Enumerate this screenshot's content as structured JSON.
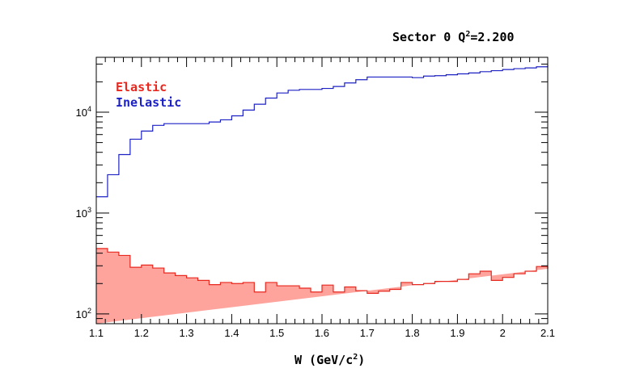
{
  "chart_data": {
    "type": "step",
    "title": {
      "prefix": "Sector 0 Q",
      "sup": "2",
      "suffix": "=2.200"
    },
    "xlabel": {
      "prefix": "W  (GeV/c",
      "sup": "2",
      "suffix": ")"
    },
    "ylabel": "",
    "xlim": [
      1.1,
      2.1
    ],
    "ylim": [
      80,
      35000
    ],
    "yscale": "log",
    "grid": false,
    "legend_position": "top-left",
    "x_ticks": [
      "1.1",
      "1.2",
      "1.3",
      "1.4",
      "1.5",
      "1.6",
      "1.7",
      "1.8",
      "1.9",
      "2",
      "2.1"
    ],
    "y_ticks": [
      {
        "base": "10",
        "exp": "2",
        "value": 100
      },
      {
        "base": "10",
        "exp": "3",
        "value": 1000
      },
      {
        "base": "10",
        "exp": "4",
        "value": 10000
      }
    ],
    "bin_edges": [
      1.1,
      1.125,
      1.15,
      1.175,
      1.2,
      1.225,
      1.25,
      1.275,
      1.3,
      1.325,
      1.35,
      1.375,
      1.4,
      1.425,
      1.45,
      1.475,
      1.5,
      1.525,
      1.55,
      1.575,
      1.6,
      1.625,
      1.65,
      1.675,
      1.7,
      1.725,
      1.75,
      1.775,
      1.8,
      1.825,
      1.85,
      1.875,
      1.9,
      1.925,
      1.95,
      1.975,
      2.0,
      2.025,
      2.05,
      2.075,
      2.1
    ],
    "series": [
      {
        "name": "Elastic",
        "color": "#e8281f",
        "fill": "#ffa39d",
        "values": [
          445,
          410,
          380,
          290,
          305,
          285,
          255,
          240,
          228,
          215,
          195,
          205,
          200,
          205,
          165,
          205,
          190,
          190,
          180,
          165,
          193,
          165,
          185,
          170,
          160,
          168,
          175,
          205,
          195,
          200,
          210,
          210,
          220,
          250,
          265,
          215,
          230,
          250,
          265,
          295,
          280
        ]
      },
      {
        "name": "Inelastic",
        "color": "#1c21c4",
        "values": [
          1450,
          2400,
          3800,
          5400,
          6500,
          7400,
          7700,
          7700,
          7700,
          7700,
          8000,
          8400,
          9200,
          10500,
          12000,
          13800,
          15500,
          16500,
          16800,
          16800,
          17200,
          18000,
          19500,
          21000,
          22300,
          22300,
          22300,
          22300,
          22000,
          22800,
          23000,
          23500,
          24000,
          24500,
          25200,
          25800,
          26500,
          27000,
          27500,
          28200,
          29300
        ]
      }
    ]
  }
}
